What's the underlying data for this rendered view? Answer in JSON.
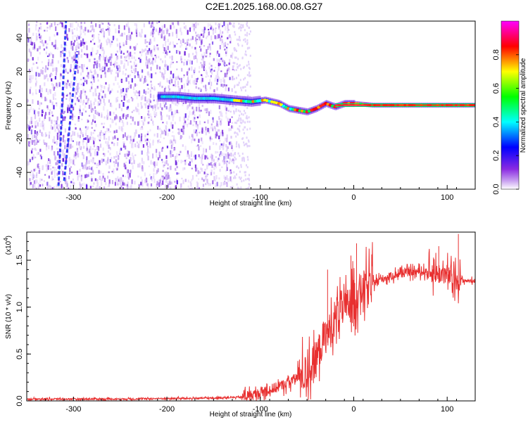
{
  "title": "C2E1.2025.168.00.08.G27",
  "chart_data": [
    {
      "type": "heatmap",
      "title": "C2E1.2025.168.00.08.G27",
      "xlabel": "Height of straight line (km)",
      "ylabel": "Frequency (Hz)",
      "xlim": [
        -350,
        130
      ],
      "ylim": [
        -50,
        50
      ],
      "x_ticks": [
        -300,
        -200,
        -100,
        0,
        100
      ],
      "y_ticks": [
        -40,
        -20,
        0,
        20,
        40
      ],
      "colorbar": {
        "label": "Normalized spectral amplitude",
        "range": [
          0,
          1
        ],
        "ticks": [
          0.0,
          0.2,
          0.4,
          0.6,
          0.8
        ],
        "tick_labels": [
          "0.0",
          "0.2",
          "0.4",
          "0.6",
          "0.8"
        ],
        "colors": [
          "#ffffff",
          "#8a2be2",
          "#0000ff",
          "#00ffff",
          "#00ff00",
          "#ffff00",
          "#ff0000",
          "#ff00ff"
        ]
      },
      "noise_region_x": [
        -350,
        -130
      ],
      "doppler_track": [
        {
          "x": -210,
          "y": 5
        },
        {
          "x": -190,
          "y": 5
        },
        {
          "x": -170,
          "y": 4
        },
        {
          "x": -150,
          "y": 4
        },
        {
          "x": -130,
          "y": 3
        },
        {
          "x": -110,
          "y": 2
        },
        {
          "x": -95,
          "y": 3
        },
        {
          "x": -80,
          "y": 1
        },
        {
          "x": -70,
          "y": -2
        },
        {
          "x": -60,
          "y": -3
        },
        {
          "x": -50,
          "y": -4
        },
        {
          "x": -40,
          "y": -2
        },
        {
          "x": -30,
          "y": 1
        },
        {
          "x": -20,
          "y": -1
        },
        {
          "x": -10,
          "y": 1
        },
        {
          "x": 0,
          "y": 1
        },
        {
          "x": 20,
          "y": 0
        },
        {
          "x": 60,
          "y": 0
        },
        {
          "x": 100,
          "y": 0
        },
        {
          "x": 130,
          "y": 0
        }
      ],
      "streaks": [
        {
          "x": [
            -310,
            -296
          ],
          "y": [
            -45,
            32
          ]
        },
        {
          "x": [
            -316,
            -308
          ],
          "y": [
            -48,
            50
          ]
        }
      ]
    },
    {
      "type": "line",
      "xlabel": "Height of straight line (km)",
      "ylabel": "SNR (10 * v/v)",
      "y_multiplier": "(x10",
      "y_multiplier_exp": "4",
      "xlim": [
        -350,
        130
      ],
      "ylim": [
        0,
        1.8
      ],
      "x_ticks": [
        -300,
        -200,
        -100,
        0,
        100
      ],
      "y_ticks": [
        0.0,
        0.5,
        1.0,
        1.5
      ],
      "y_tick_labels": [
        "0.0",
        "0.5",
        "1.0",
        "1.5"
      ],
      "series": [
        {
          "color": "#e83030",
          "x": [
            -350,
            -300,
            -250,
            -200,
            -150,
            -120,
            -100,
            -90,
            -80,
            -70,
            -60,
            -50,
            -40,
            -35,
            -30,
            -25,
            -20,
            -15,
            -10,
            -5,
            0,
            5,
            10,
            15,
            20,
            25,
            30,
            40,
            50,
            60,
            70,
            80,
            90,
            100,
            105,
            110,
            115,
            120,
            130
          ],
          "y": [
            0.02,
            0.02,
            0.02,
            0.025,
            0.03,
            0.04,
            0.08,
            0.12,
            0.15,
            0.2,
            0.25,
            0.3,
            0.45,
            0.6,
            0.7,
            0.75,
            0.9,
            1.0,
            0.95,
            1.05,
            1.1,
            1.15,
            1.2,
            1.2,
            1.25,
            1.28,
            1.3,
            1.33,
            1.36,
            1.37,
            1.38,
            1.37,
            1.36,
            1.35,
            1.3,
            1.3,
            1.29,
            1.28,
            1.28
          ]
        }
      ],
      "spikes": [
        {
          "x": 3,
          "y": 1.68
        },
        {
          "x": -28,
          "y": 1.4
        },
        {
          "x": 112,
          "y": 1.78
        },
        {
          "x": 91,
          "y": 1.65
        },
        {
          "x": -3,
          "y": 1.55
        }
      ]
    }
  ]
}
